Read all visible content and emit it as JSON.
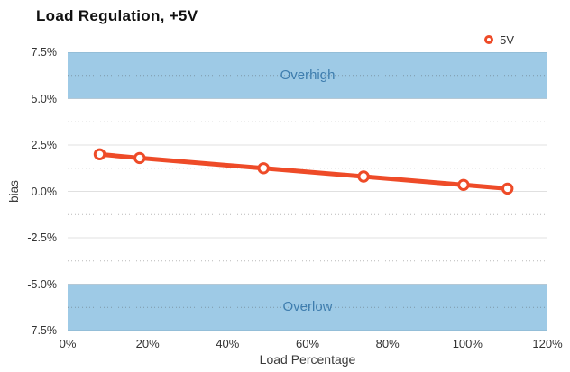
{
  "title": "Load Regulation, +5V",
  "legend": {
    "position": "top-right",
    "items": [
      {
        "label": "5V",
        "marker": "ring-marker-icon",
        "color": "#EE4B28"
      }
    ]
  },
  "colors": {
    "line": "#EE4B28",
    "marker_fill": "#FFFFFF",
    "band": "#9ECAE6",
    "band_label": "#3E7DAE",
    "grid_major": "rgba(0,0,0,0.12)",
    "grid_minor": "rgba(70,70,70,0.38)",
    "tick_text": "#333333",
    "title_text": "#111111"
  },
  "chart_data": {
    "type": "line",
    "title": "Load Regulation, +5V",
    "xlabel": "Load Percentage",
    "ylabel": "bias",
    "xlim": [
      0,
      120
    ],
    "ylim": [
      -7.5,
      7.5
    ],
    "x_ticks": [
      "0%",
      "20%",
      "40%",
      "60%",
      "80%",
      "100%",
      "120%"
    ],
    "y_ticks": [
      "7.5%",
      "5.0%",
      "2.5%",
      "0.0%",
      "-2.5%",
      "-5.0%",
      "-7.5%"
    ],
    "grid": {
      "major_interval": 2.5,
      "minor_interval": 1.25,
      "minor_style": "dotted"
    },
    "series": [
      {
        "name": "5V",
        "symbol": "hollow-circle",
        "x": [
          8,
          18,
          49,
          74,
          99,
          110
        ],
        "y": [
          2.0,
          1.8,
          1.25,
          0.8,
          0.35,
          0.15
        ]
      }
    ],
    "bands": [
      {
        "label": "Overhigh",
        "from": 5.0,
        "to": 7.5
      },
      {
        "label": "Overlow",
        "from": -7.5,
        "to": -5.0
      }
    ],
    "legend_position": "top-right"
  }
}
